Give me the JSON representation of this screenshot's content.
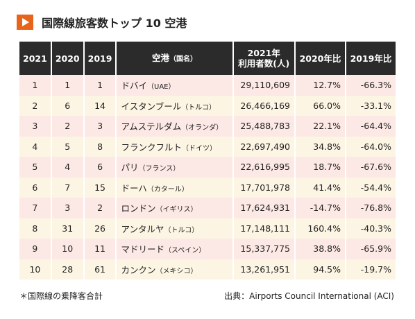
{
  "header": {
    "title": "国際線旅客数トップ 10 空港"
  },
  "table": {
    "columns": [
      "2021",
      "2020",
      "2019",
      {
        "name": "空港",
        "note": "（国名）"
      },
      {
        "line1": "2021年",
        "line2": "利用者数(人)"
      },
      "2020年比",
      "2019年比"
    ],
    "rows": [
      [
        "1",
        "1",
        "1",
        {
          "name": "ドバイ",
          "note": "（UAE）"
        },
        "29,110,609",
        "12.7%",
        "-66.3%"
      ],
      [
        "2",
        "6",
        "14",
        {
          "name": "イスタンブール",
          "note": "（トルコ）"
        },
        "26,466,169",
        "66.0%",
        "-33.1%"
      ],
      [
        "3",
        "2",
        "3",
        {
          "name": "アムステルダム",
          "note": "（オランダ）"
        },
        "25,488,783",
        "22.1%",
        "-64.4%"
      ],
      [
        "4",
        "5",
        "8",
        {
          "name": "フランクフルト",
          "note": "（ドイツ）"
        },
        "22,697,490",
        "34.8%",
        "-64.0%"
      ],
      [
        "5",
        "4",
        "6",
        {
          "name": "パリ",
          "note": "（フランス）"
        },
        "22,616,995",
        "18.7%",
        "-67.6%"
      ],
      [
        "6",
        "7",
        "15",
        {
          "name": "ドーハ",
          "note": "（カタール）"
        },
        "17,701,978",
        "41.4%",
        "-54.4%"
      ],
      [
        "7",
        "3",
        "2",
        {
          "name": "ロンドン",
          "note": "（イギリス）"
        },
        "17,624,931",
        "-14.7%",
        "-76.8%"
      ],
      [
        "8",
        "31",
        "26",
        {
          "name": "アンタルヤ",
          "note": "（トルコ）"
        },
        "17,148,111",
        "160.4%",
        "-40.3%"
      ],
      [
        "9",
        "10",
        "11",
        {
          "name": "マドリード",
          "note": "（スペイン）"
        },
        "15,337,775",
        "38.8%",
        "-65.9%"
      ],
      [
        "10",
        "28",
        "61",
        {
          "name": "カンクン",
          "note": "（メキシコ）"
        },
        "13,261,951",
        "94.5%",
        "-19.7%"
      ]
    ]
  },
  "footer": {
    "note": "＊国際線の乗降客合計",
    "source": "出典：Airports Council International (ACI)"
  }
}
